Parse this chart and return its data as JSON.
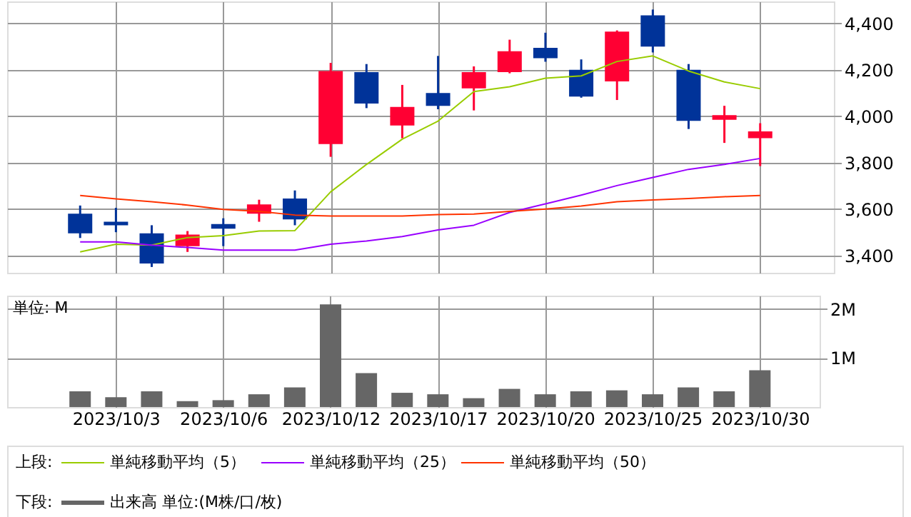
{
  "chart_data": [
    {
      "type": "candlestick",
      "legend_title": "上段:",
      "legend": "bottom",
      "grid": true,
      "tick_labels": "y",
      "marker": "none",
      "categories": [
        null,
        "2023/10/3",
        null,
        null,
        "2023/10/6",
        null,
        null,
        "2023/10/12",
        null,
        null,
        "2023/10/17",
        null,
        null,
        "2023/10/20",
        null,
        null,
        "2023/10/25",
        null,
        null,
        "2023/10/30"
      ],
      "ohlc": [
        [
          3580,
          3615,
          3475,
          3495
        ],
        [
          3545,
          3605,
          3500,
          3530
        ],
        [
          3495,
          3530,
          3350,
          3365
        ],
        [
          3440,
          3505,
          3415,
          3490
        ],
        [
          3535,
          3560,
          3440,
          3515
        ],
        [
          3580,
          3640,
          3545,
          3620
        ],
        [
          3645,
          3680,
          3530,
          3555
        ],
        [
          3880,
          4230,
          3825,
          4195
        ],
        [
          4190,
          4225,
          4035,
          4055
        ],
        [
          3960,
          4135,
          3905,
          4040
        ],
        [
          4100,
          4260,
          4030,
          4045
        ],
        [
          4120,
          4215,
          4025,
          4190
        ],
        [
          4190,
          4330,
          4185,
          4280
        ],
        [
          4295,
          4360,
          4235,
          4250
        ],
        [
          4200,
          4245,
          4080,
          4085
        ],
        [
          4150,
          4370,
          4070,
          4365
        ],
        [
          4435,
          4460,
          4275,
          4300
        ],
        [
          4200,
          4225,
          3945,
          3980
        ],
        [
          3985,
          4045,
          3885,
          4005
        ],
        [
          3905,
          3970,
          3785,
          3935
        ]
      ],
      "colors": [
        "#003399",
        "#003399",
        "#003399",
        "#ff0033",
        "#003399",
        "#ff0033",
        "#003399",
        "#ff0033",
        "#003399",
        "#ff0033",
        "#003399",
        "#ff0033",
        "#ff0033",
        "#003399",
        "#003399",
        "#ff0033",
        "#003399",
        "#003399",
        "#ff0033",
        "#ff0033"
      ],
      "ylim": [
        3325,
        4495
      ],
      "yticks": [
        {
          "value": 3400,
          "label": "3,400"
        },
        {
          "value": 3600,
          "label": "3,600"
        },
        {
          "value": 3800,
          "label": "3,800"
        },
        {
          "value": 4000,
          "label": "4,000"
        },
        {
          "value": 4200,
          "label": "4,200"
        },
        {
          "value": 4400,
          "label": "4,400"
        }
      ],
      "series": [
        {
          "name": "単純移動平均（5）",
          "type": "line",
          "color": "#99cc00",
          "values": [
            3415,
            3448,
            3444,
            3477,
            3485,
            3505,
            3507,
            3674,
            3792,
            3901,
            3979,
            4106,
            4127,
            4164,
            4174,
            4236,
            4260,
            4195,
            4148,
            4119
          ]
        },
        {
          "name": "単純移動平均（25）",
          "type": "line",
          "color": "#9900ff",
          "values": [
            3458,
            3458,
            3444,
            3434,
            3423,
            3423,
            3423,
            3448,
            3462,
            3481,
            3510,
            3530,
            3585,
            3622,
            3660,
            3701,
            3736,
            3771,
            3792,
            3818
          ]
        },
        {
          "name": "単純移動平均（50）",
          "type": "line",
          "color": "#ff3300",
          "values": [
            3658,
            3644,
            3631,
            3617,
            3598,
            3590,
            3574,
            3570,
            3570,
            3570,
            3576,
            3578,
            3590,
            3600,
            3613,
            3631,
            3639,
            3645,
            3653,
            3658
          ]
        }
      ]
    },
    {
      "type": "bar",
      "legend_title": "下段:",
      "legend": "bottom",
      "grid": true,
      "categories": [
        null,
        "2023/10/3",
        null,
        null,
        "2023/10/6",
        null,
        null,
        "2023/10/12",
        null,
        null,
        "2023/10/17",
        null,
        null,
        "2023/10/20",
        null,
        null,
        "2023/10/25",
        null,
        null,
        "2023/10/30"
      ],
      "ylim": [
        0,
        2.27
      ],
      "yticks": [
        {
          "value": 1,
          "label": "1M"
        },
        {
          "value": 2,
          "label": "2M"
        }
      ],
      "annotations": [
        "単位: M"
      ],
      "series": [
        {
          "name": "出来高 単位:(M株/口/枚)",
          "color": "#666666",
          "values": [
            0.32,
            0.2,
            0.32,
            0.12,
            0.14,
            0.26,
            0.4,
            2.09,
            0.69,
            0.29,
            0.26,
            0.18,
            0.37,
            0.26,
            0.32,
            0.34,
            0.26,
            0.4,
            0.32,
            0.75
          ]
        }
      ]
    }
  ]
}
